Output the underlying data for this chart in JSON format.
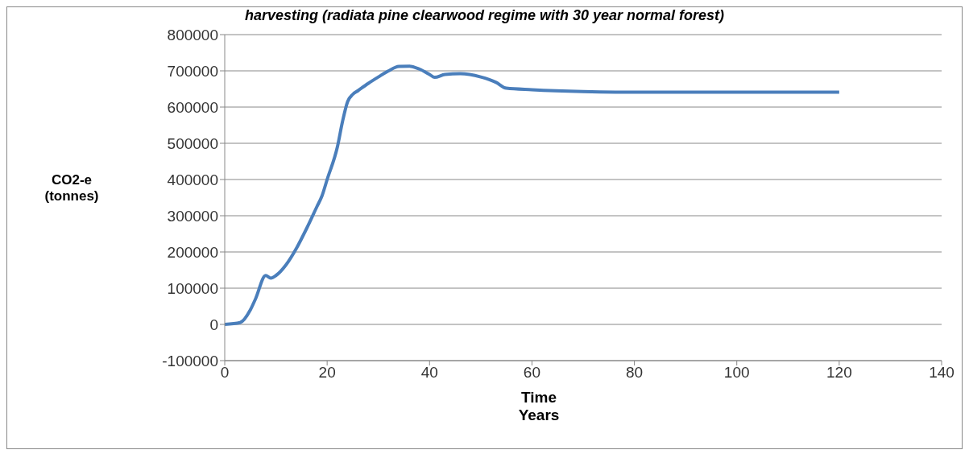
{
  "chart_data": {
    "type": "line",
    "title": "harvesting (radiata pine clearwood regime with 30 year normal forest)",
    "xlabel": "Time\nYears",
    "ylabel": "CO2-e\n(tonnes)",
    "x": [
      0,
      3,
      5,
      6,
      8,
      9,
      10,
      12,
      14,
      16,
      18,
      19,
      20,
      22,
      23,
      24,
      25,
      26,
      28,
      30,
      32,
      34,
      36,
      38,
      40,
      41,
      43,
      46,
      50,
      53,
      55,
      60,
      70,
      80,
      100,
      120
    ],
    "series": [
      {
        "color": "#4a7ebb",
        "values": [
          0,
          5000,
          40000,
          70000,
          135000,
          128000,
          135000,
          165000,
          210000,
          265000,
          325000,
          355000,
          400000,
          490000,
          560000,
          615000,
          635000,
          645000,
          665000,
          683000,
          700000,
          712000,
          713000,
          705000,
          690000,
          682000,
          690000,
          692000,
          683000,
          668000,
          652000,
          648000,
          643000,
          641000,
          641000,
          641000
        ]
      }
    ],
    "xlim": [
      0,
      140
    ],
    "xticks": [
      0,
      20,
      40,
      60,
      80,
      100,
      120,
      140
    ],
    "ylim": [
      -100000,
      800000
    ],
    "yticks": [
      -100000,
      0,
      100000,
      200000,
      300000,
      400000,
      500000,
      600000,
      700000,
      800000
    ],
    "grid": "y",
    "legend": false,
    "marker": "none",
    "line_style": "solid"
  }
}
